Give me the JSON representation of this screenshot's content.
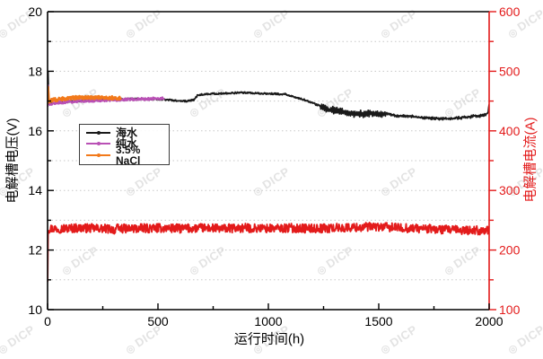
{
  "watermark": {
    "symbol": "◎",
    "text": "DICP",
    "color": "#e3e3e3"
  },
  "chart_data": {
    "type": "line",
    "title": "",
    "xlabel": "运行时间(h)",
    "ylabel_left": "电解槽电压(V)",
    "ylabel_right": "电解槽电流(A)",
    "x_range": [
      0,
      2000
    ],
    "x_major_ticks": [
      0,
      500,
      1000,
      1500,
      2000
    ],
    "x_minor_step": 250,
    "y_left_range": [
      10,
      20
    ],
    "y_left_major_ticks": [
      10,
      12,
      14,
      16,
      18,
      20
    ],
    "y_left_minor_step": 1,
    "y_right_range": [
      100,
      600
    ],
    "y_right_major_ticks": [
      100,
      200,
      300,
      400,
      500,
      600
    ],
    "y_right_minor_step": 50,
    "grid": {
      "horizontal_dotted": true,
      "color": "#c8c8c8"
    },
    "axis_colors": {
      "left": "#000000",
      "bottom": "#000000",
      "top": "#000000",
      "right": "#e31b1b"
    },
    "legend": {
      "position": "upper-left-inside",
      "entries": [
        {
          "label": "海水",
          "color": "#1a1a1a"
        },
        {
          "label": "纯水",
          "color": "#b950b5"
        },
        {
          "label": "3.5% NaCl",
          "color": "#f2791a"
        }
      ]
    },
    "series": [
      {
        "name": "电解槽电流",
        "axis": "right",
        "color": "#e31b1b",
        "width": 1.9,
        "noise": 7.5,
        "step": 2,
        "points": [
          [
            0,
            150
          ],
          [
            2,
            236
          ],
          [
            50,
            236
          ],
          [
            150,
            237
          ],
          [
            250,
            236
          ],
          [
            298,
            235
          ],
          [
            303,
            228
          ],
          [
            306,
            236
          ],
          [
            400,
            236
          ],
          [
            500,
            237
          ],
          [
            600,
            236
          ],
          [
            700,
            237
          ],
          [
            800,
            236
          ],
          [
            900,
            237
          ],
          [
            1000,
            236
          ],
          [
            1100,
            237
          ],
          [
            1200,
            236
          ],
          [
            1300,
            237
          ],
          [
            1400,
            238
          ],
          [
            1500,
            239
          ],
          [
            1600,
            237
          ],
          [
            1700,
            236
          ],
          [
            1800,
            234
          ],
          [
            1900,
            233
          ],
          [
            2000,
            233
          ]
        ]
      },
      {
        "name": "海水",
        "axis": "left",
        "color": "#1a1a1a",
        "width": 1.8,
        "noise": 0.028,
        "step": 2,
        "noise_regions": [
          {
            "from": 1235,
            "to": 1530,
            "amp": 0.085
          },
          {
            "from": 1530,
            "to": 1985,
            "amp": 0.02
          }
        ],
        "points": [
          [
            0,
            16.8
          ],
          [
            2,
            17.95
          ],
          [
            5,
            16.88
          ],
          [
            30,
            16.93
          ],
          [
            80,
            16.97
          ],
          [
            150,
            17.0
          ],
          [
            250,
            17.04
          ],
          [
            350,
            17.07
          ],
          [
            450,
            17.07
          ],
          [
            520,
            17.06
          ],
          [
            560,
            17.03
          ],
          [
            600,
            17.0
          ],
          [
            640,
            17.0
          ],
          [
            665,
            17.05
          ],
          [
            680,
            17.2
          ],
          [
            720,
            17.24
          ],
          [
            800,
            17.26
          ],
          [
            880,
            17.28
          ],
          [
            960,
            17.26
          ],
          [
            1040,
            17.24
          ],
          [
            1080,
            17.23
          ],
          [
            1120,
            17.12
          ],
          [
            1160,
            17.05
          ],
          [
            1200,
            16.93
          ],
          [
            1240,
            16.82
          ],
          [
            1270,
            16.72
          ],
          [
            1310,
            16.68
          ],
          [
            1360,
            16.6
          ],
          [
            1420,
            16.55
          ],
          [
            1460,
            16.6
          ],
          [
            1500,
            16.55
          ],
          [
            1540,
            16.58
          ],
          [
            1580,
            16.5
          ],
          [
            1620,
            16.5
          ],
          [
            1660,
            16.47
          ],
          [
            1700,
            16.44
          ],
          [
            1740,
            16.42
          ],
          [
            1790,
            16.4
          ],
          [
            1840,
            16.42
          ],
          [
            1890,
            16.45
          ],
          [
            1940,
            16.5
          ],
          [
            1975,
            16.52
          ],
          [
            1995,
            16.6
          ],
          [
            2000,
            16.88
          ]
        ]
      },
      {
        "name": "纯水",
        "axis": "left",
        "color": "#b950b5",
        "width": 2.3,
        "noise": 0.04,
        "step": 2,
        "points": [
          [
            0,
            16.85
          ],
          [
            2,
            17.5
          ],
          [
            6,
            16.9
          ],
          [
            40,
            16.94
          ],
          [
            90,
            16.97
          ],
          [
            150,
            17.0
          ],
          [
            220,
            17.02
          ],
          [
            300,
            17.04
          ],
          [
            380,
            17.06
          ],
          [
            450,
            17.07
          ],
          [
            528,
            17.1
          ]
        ]
      },
      {
        "name": "3.5% NaCl",
        "axis": "left",
        "color": "#f2791a",
        "width": 2.6,
        "noise": 0.055,
        "step": 2,
        "points": [
          [
            0,
            16.9
          ],
          [
            2,
            17.45
          ],
          [
            6,
            17.0
          ],
          [
            30,
            17.04
          ],
          [
            70,
            17.08
          ],
          [
            120,
            17.11
          ],
          [
            170,
            17.12
          ],
          [
            220,
            17.12
          ],
          [
            270,
            17.11
          ],
          [
            333,
            17.1
          ]
        ]
      }
    ]
  }
}
